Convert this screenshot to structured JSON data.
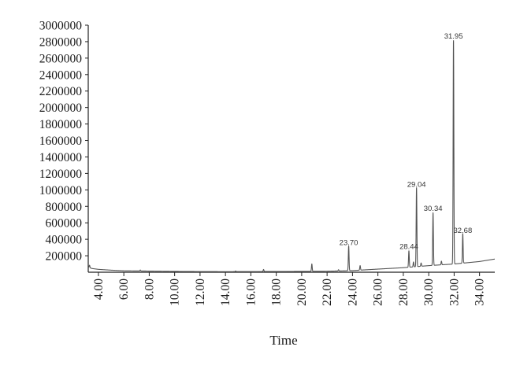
{
  "chart_data": {
    "type": "line",
    "title": "",
    "xlabel": "Time",
    "ylabel": "",
    "xlim": [
      3.2,
      35.2
    ],
    "ylim": [
      0,
      3000000
    ],
    "grid": false,
    "legend": "none",
    "x_ticks": [
      {
        "value": 4,
        "label": "4.00"
      },
      {
        "value": 6,
        "label": "6.00"
      },
      {
        "value": 8,
        "label": "8.00"
      },
      {
        "value": 10,
        "label": "10.00"
      },
      {
        "value": 12,
        "label": "12.00"
      },
      {
        "value": 14,
        "label": "14.00"
      },
      {
        "value": 16,
        "label": "16.00"
      },
      {
        "value": 18,
        "label": "18.00"
      },
      {
        "value": 20,
        "label": "20.00"
      },
      {
        "value": 22,
        "label": "22.00"
      },
      {
        "value": 24,
        "label": "24.00"
      },
      {
        "value": 26,
        "label": "26.00"
      },
      {
        "value": 28,
        "label": "28.00"
      },
      {
        "value": 30,
        "label": "30.00"
      },
      {
        "value": 32,
        "label": "32.00"
      },
      {
        "value": 34,
        "label": "34.00"
      }
    ],
    "y_ticks": [
      {
        "value": 200000,
        "label": "200000"
      },
      {
        "value": 400000,
        "label": "400000"
      },
      {
        "value": 600000,
        "label": "600000"
      },
      {
        "value": 800000,
        "label": "800000"
      },
      {
        "value": 1000000,
        "label": "1000000"
      },
      {
        "value": 1200000,
        "label": "1200000"
      },
      {
        "value": 1400000,
        "label": "1400000"
      },
      {
        "value": 1600000,
        "label": "1600000"
      },
      {
        "value": 1800000,
        "label": "1800000"
      },
      {
        "value": 2000000,
        "label": "2000000"
      },
      {
        "value": 2200000,
        "label": "2200000"
      },
      {
        "value": 2400000,
        "label": "2400000"
      },
      {
        "value": 2600000,
        "label": "2600000"
      },
      {
        "value": 2800000,
        "label": "2800000"
      },
      {
        "value": 3000000,
        "label": "3000000"
      }
    ],
    "series": [
      {
        "color": "#555555",
        "baseline": [
          [
            3.2,
            60000
          ],
          [
            3.5,
            45000
          ],
          [
            4.0,
            35000
          ],
          [
            5.0,
            25000
          ],
          [
            6.0,
            18000
          ],
          [
            8.0,
            14000
          ],
          [
            10.0,
            10000
          ],
          [
            12.0,
            8000
          ],
          [
            14.0,
            7000
          ],
          [
            16.0,
            8000
          ],
          [
            18.0,
            9000
          ],
          [
            20.0,
            10000
          ],
          [
            22.0,
            12000
          ],
          [
            24.0,
            20000
          ],
          [
            26.0,
            38000
          ],
          [
            28.0,
            55000
          ],
          [
            30.0,
            80000
          ],
          [
            32.0,
            100000
          ],
          [
            34.0,
            130000
          ],
          [
            35.2,
            160000
          ]
        ],
        "peaks": [
          {
            "x": 3.3,
            "height": 30000
          },
          {
            "x": 7.3,
            "height": 12000
          },
          {
            "x": 14.8,
            "height": 8000
          },
          {
            "x": 17.0,
            "height": 25000
          },
          {
            "x": 20.8,
            "height": 90000
          },
          {
            "x": 22.9,
            "height": 15000
          },
          {
            "x": 23.7,
            "height": 300000
          },
          {
            "x": 24.6,
            "height": 55000
          },
          {
            "x": 28.44,
            "height": 200000
          },
          {
            "x": 28.8,
            "height": 60000
          },
          {
            "x": 29.04,
            "height": 960000
          },
          {
            "x": 29.4,
            "height": 40000
          },
          {
            "x": 30.34,
            "height": 640000
          },
          {
            "x": 31.0,
            "height": 45000
          },
          {
            "x": 31.95,
            "height": 2720000
          },
          {
            "x": 32.68,
            "height": 360000
          }
        ]
      }
    ],
    "annotations": [
      {
        "x": 23.7,
        "y": 300000,
        "text": "23.70"
      },
      {
        "x": 28.44,
        "y": 255000,
        "text": "28.44"
      },
      {
        "x": 29.04,
        "y": 1010000,
        "text": "29.04"
      },
      {
        "x": 30.34,
        "y": 715000,
        "text": "30.34"
      },
      {
        "x": 31.95,
        "y": 2810000,
        "text": "31.95"
      },
      {
        "x": 32.68,
        "y": 450000,
        "text": "32.68"
      }
    ]
  }
}
